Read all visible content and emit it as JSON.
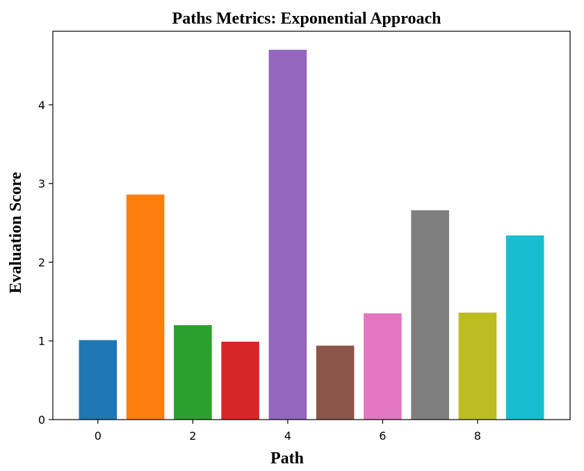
{
  "chart_data": {
    "type": "bar",
    "title": "Paths Metrics: Exponential Approach",
    "xlabel": "Path",
    "ylabel": "Evaluation Score",
    "categories": [
      0,
      1,
      2,
      3,
      4,
      5,
      6,
      7,
      8,
      9
    ],
    "values": [
      1.01,
      2.86,
      1.2,
      0.99,
      4.7,
      0.94,
      1.35,
      2.66,
      1.36,
      2.34
    ],
    "colors": [
      "#1f77b4",
      "#ff7f0e",
      "#2ca02c",
      "#d62728",
      "#9467bd",
      "#8c564b",
      "#e377c2",
      "#7f7f7f",
      "#bcbd22",
      "#17becf"
    ],
    "xlim": [
      -0.95,
      9.95
    ],
    "ylim": [
      0,
      4.935
    ],
    "xticks": [
      0,
      2,
      4,
      6,
      8
    ],
    "yticks": [
      0,
      1,
      2,
      3,
      4
    ],
    "bar_width": 0.8,
    "grid": false,
    "legend": "none"
  }
}
